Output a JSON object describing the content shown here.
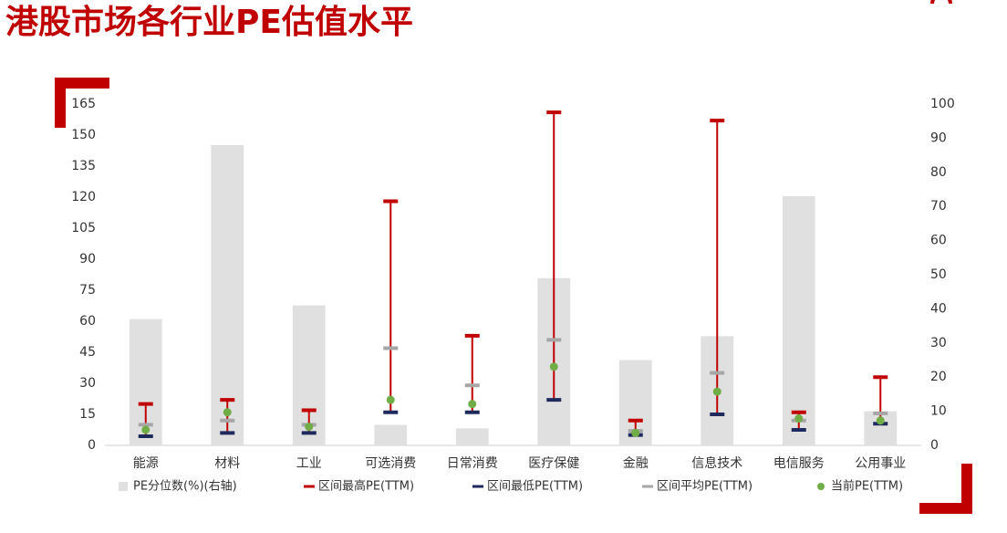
{
  "chart_data": {
    "type": "bar",
    "title": "港股市场各行业PE估值水平",
    "categories": [
      "能源",
      "材料",
      "工业",
      "可选消费",
      "日常消费",
      "医疗保健",
      "金融",
      "信息技术",
      "电信服务",
      "公用事业"
    ],
    "series": [
      {
        "name": "PE分位数(%)(右轴)",
        "color": "#e0e0e0",
        "axis": "y2",
        "marker": "bar",
        "values": [
          37,
          88,
          41,
          6,
          5,
          49,
          25,
          32,
          73,
          10
        ]
      },
      {
        "name": "区间最高PE(TTM)",
        "color": "#c00000",
        "marker": "dash",
        "values": [
          20,
          22,
          17,
          118,
          53,
          161,
          12,
          157,
          16,
          33
        ]
      },
      {
        "name": "区间最低PE(TTM)",
        "color": "#1f2a5c",
        "marker": "dash",
        "values": [
          4.4,
          6,
          6,
          16,
          16,
          22,
          5,
          15,
          7.5,
          10.5
        ]
      },
      {
        "name": "区间平均PE(TTM)",
        "color": "#a6a6a6",
        "marker": "dash",
        "values": [
          10,
          12,
          10,
          47,
          29,
          51,
          7,
          35,
          12,
          15.5
        ]
      },
      {
        "name": "当前PE(TTM)",
        "color": "#70ad47",
        "marker": "dot",
        "values": [
          7.5,
          16,
          9,
          22,
          20,
          38,
          6,
          26,
          13,
          12
        ]
      }
    ],
    "ylim": [
      0,
      165
    ],
    "yticks": [
      0,
      15,
      30,
      45,
      60,
      75,
      90,
      105,
      120,
      135,
      150,
      165
    ],
    "y2lim": [
      0,
      100
    ],
    "y2ticks": [
      0,
      10,
      20,
      30,
      40,
      50,
      60,
      70,
      80,
      90,
      100
    ],
    "grid": false,
    "legend": "bottom"
  }
}
